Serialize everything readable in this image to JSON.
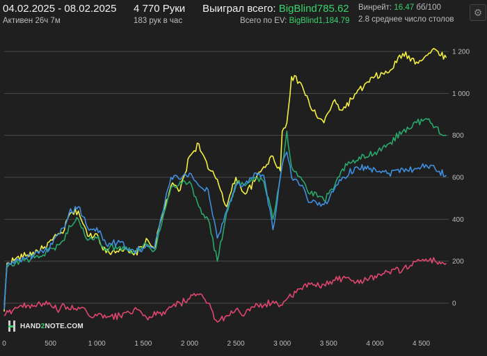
{
  "header": {
    "date_range": "04.02.2025 - 08.02.2025",
    "active_time": "Активен 26ч 7м",
    "hands": "4 770 Руки",
    "hands_rate": "183 рук в час",
    "won_label": "Выиграл всего:",
    "won_value": "BigBlind785.62",
    "ev_label": "Всего по EV:",
    "ev_value": "BigBlind1,184.79",
    "winrate_label": "Винрейт:",
    "winrate_value": "16.47",
    "winrate_unit": "бб/100",
    "avg_tables": "2.8 среднее число столов"
  },
  "logo": {
    "part1": "HAND",
    "part2": "2",
    "part3": "NOTE.COM"
  },
  "colors": {
    "background": "#1f1f1f",
    "grid": "#4a4a4a",
    "accent_green": "#39d36c",
    "ev_line": "#f5ef43",
    "won_line": "#29a86b",
    "showdown_line": "#3f8fe0",
    "non_showdown_line": "#e0466f"
  },
  "icons": {
    "settings": "gear-icon"
  },
  "chart_data": {
    "type": "line",
    "x_ticks": [
      "0",
      "500",
      "1 000",
      "1 500",
      "2 000",
      "2 500",
      "3 000",
      "3 500",
      "4 000",
      "4 500"
    ],
    "y_ticks": [
      "0",
      "200",
      "400",
      "600",
      "800",
      "1 000",
      "1 200"
    ],
    "xlim": [
      0,
      4770
    ],
    "ylim": [
      -100,
      1250
    ],
    "grid": true,
    "series": [
      {
        "key": "ev",
        "color": "#f5ef43",
        "points": [
          [
            0,
            -40
          ],
          [
            30,
            190
          ],
          [
            120,
            210
          ],
          [
            250,
            230
          ],
          [
            420,
            260
          ],
          [
            520,
            300
          ],
          [
            600,
            330
          ],
          [
            650,
            350
          ],
          [
            700,
            420
          ],
          [
            800,
            440
          ],
          [
            900,
            320
          ],
          [
            1000,
            330
          ],
          [
            1100,
            240
          ],
          [
            1250,
            260
          ],
          [
            1400,
            230
          ],
          [
            1550,
            300
          ],
          [
            1620,
            260
          ],
          [
            1700,
            410
          ],
          [
            1800,
            560
          ],
          [
            1900,
            540
          ],
          [
            2000,
            700
          ],
          [
            2100,
            760
          ],
          [
            2200,
            640
          ],
          [
            2300,
            590
          ],
          [
            2400,
            460
          ],
          [
            2500,
            600
          ],
          [
            2600,
            520
          ],
          [
            2700,
            580
          ],
          [
            2800,
            650
          ],
          [
            2900,
            700
          ],
          [
            2980,
            630
          ],
          [
            3000,
            820
          ],
          [
            3050,
            860
          ],
          [
            3100,
            1080
          ],
          [
            3200,
            1050
          ],
          [
            3300,
            940
          ],
          [
            3400,
            880
          ],
          [
            3450,
            860
          ],
          [
            3550,
            960
          ],
          [
            3650,
            920
          ],
          [
            3800,
            1000
          ],
          [
            4000,
            1080
          ],
          [
            4150,
            1100
          ],
          [
            4300,
            1190
          ],
          [
            4450,
            1150
          ],
          [
            4550,
            1180
          ],
          [
            4650,
            1210
          ],
          [
            4770,
            1170
          ]
        ]
      },
      {
        "key": "won",
        "color": "#29a86b",
        "points": [
          [
            0,
            -10
          ],
          [
            30,
            170
          ],
          [
            120,
            190
          ],
          [
            250,
            210
          ],
          [
            420,
            230
          ],
          [
            520,
            260
          ],
          [
            600,
            280
          ],
          [
            650,
            300
          ],
          [
            700,
            370
          ],
          [
            800,
            400
          ],
          [
            900,
            300
          ],
          [
            1000,
            310
          ],
          [
            1100,
            260
          ],
          [
            1250,
            270
          ],
          [
            1400,
            250
          ],
          [
            1550,
            280
          ],
          [
            1620,
            250
          ],
          [
            1700,
            380
          ],
          [
            1800,
            550
          ],
          [
            1900,
            580
          ],
          [
            2000,
            580
          ],
          [
            2100,
            460
          ],
          [
            2200,
            400
          ],
          [
            2300,
            200
          ],
          [
            2400,
            430
          ],
          [
            2500,
            570
          ],
          [
            2600,
            560
          ],
          [
            2700,
            600
          ],
          [
            2800,
            580
          ],
          [
            2900,
            400
          ],
          [
            3000,
            660
          ],
          [
            3050,
            820
          ],
          [
            3100,
            650
          ],
          [
            3200,
            600
          ],
          [
            3300,
            520
          ],
          [
            3400,
            510
          ],
          [
            3450,
            490
          ],
          [
            3550,
            540
          ],
          [
            3650,
            640
          ],
          [
            3800,
            680
          ],
          [
            4000,
            720
          ],
          [
            4150,
            760
          ],
          [
            4300,
            820
          ],
          [
            4450,
            860
          ],
          [
            4550,
            880
          ],
          [
            4650,
            840
          ],
          [
            4770,
            800
          ]
        ]
      },
      {
        "key": "showdown",
        "color": "#3f8fe0",
        "points": [
          [
            0,
            -30
          ],
          [
            30,
            180
          ],
          [
            120,
            200
          ],
          [
            250,
            220
          ],
          [
            420,
            240
          ],
          [
            520,
            280
          ],
          [
            600,
            330
          ],
          [
            650,
            360
          ],
          [
            700,
            430
          ],
          [
            800,
            460
          ],
          [
            900,
            360
          ],
          [
            1000,
            360
          ],
          [
            1100,
            280
          ],
          [
            1250,
            290
          ],
          [
            1400,
            250
          ],
          [
            1550,
            270
          ],
          [
            1620,
            260
          ],
          [
            1700,
            420
          ],
          [
            1800,
            600
          ],
          [
            1900,
            590
          ],
          [
            2000,
            620
          ],
          [
            2100,
            560
          ],
          [
            2200,
            540
          ],
          [
            2300,
            310
          ],
          [
            2400,
            440
          ],
          [
            2500,
            560
          ],
          [
            2600,
            570
          ],
          [
            2700,
            620
          ],
          [
            2800,
            610
          ],
          [
            2900,
            350
          ],
          [
            3000,
            660
          ],
          [
            3050,
            720
          ],
          [
            3100,
            600
          ],
          [
            3200,
            560
          ],
          [
            3300,
            480
          ],
          [
            3400,
            480
          ],
          [
            3450,
            470
          ],
          [
            3550,
            530
          ],
          [
            3650,
            600
          ],
          [
            3800,
            650
          ],
          [
            4000,
            640
          ],
          [
            4150,
            620
          ],
          [
            4300,
            640
          ],
          [
            4450,
            640
          ],
          [
            4550,
            660
          ],
          [
            4650,
            640
          ],
          [
            4770,
            610
          ]
        ]
      },
      {
        "key": "non_showdown",
        "color": "#e0466f",
        "points": [
          [
            0,
            -60
          ],
          [
            120,
            -20
          ],
          [
            250,
            -10
          ],
          [
            420,
            0
          ],
          [
            520,
            -20
          ],
          [
            600,
            -30
          ],
          [
            650,
            -10
          ],
          [
            700,
            -30
          ],
          [
            800,
            -20
          ],
          [
            900,
            -50
          ],
          [
            1000,
            -60
          ],
          [
            1100,
            -70
          ],
          [
            1250,
            -60
          ],
          [
            1400,
            -30
          ],
          [
            1550,
            -80
          ],
          [
            1620,
            -40
          ],
          [
            1700,
            -60
          ],
          [
            1800,
            -20
          ],
          [
            1900,
            0
          ],
          [
            2000,
            20
          ],
          [
            2100,
            40
          ],
          [
            2200,
            0
          ],
          [
            2300,
            -90
          ],
          [
            2400,
            -60
          ],
          [
            2500,
            -30
          ],
          [
            2600,
            -50
          ],
          [
            2700,
            -20
          ],
          [
            2800,
            -10
          ],
          [
            2900,
            10
          ],
          [
            3000,
            -10
          ],
          [
            3050,
            20
          ],
          [
            3100,
            30
          ],
          [
            3200,
            70
          ],
          [
            3300,
            90
          ],
          [
            3400,
            80
          ],
          [
            3450,
            90
          ],
          [
            3550,
            110
          ],
          [
            3650,
            120
          ],
          [
            3800,
            100
          ],
          [
            4000,
            130
          ],
          [
            4150,
            150
          ],
          [
            4300,
            160
          ],
          [
            4450,
            200
          ],
          [
            4550,
            210
          ],
          [
            4650,
            200
          ],
          [
            4770,
            190
          ]
        ]
      }
    ]
  }
}
